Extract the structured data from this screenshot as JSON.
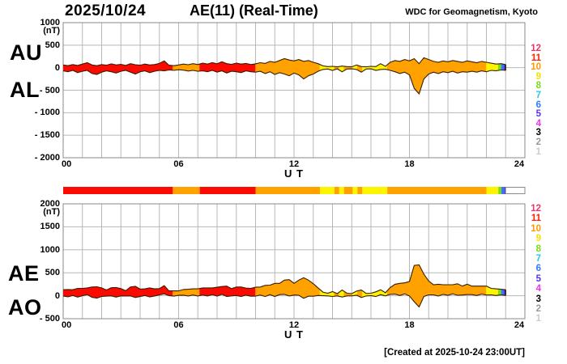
{
  "header": {
    "date": "2025/10/24",
    "title": "AE(11) (Real-Time)",
    "source": "WDC for Geomagnetism, Kyoto"
  },
  "footer": {
    "created": "[Created at 2025-10-24 23:00UT]"
  },
  "axis": {
    "unit": "(nT)",
    "xlabel": "U T",
    "xticks": [
      {
        "v": 0,
        "label": "00"
      },
      {
        "v": 6,
        "label": "06"
      },
      {
        "v": 12,
        "label": "12"
      },
      {
        "v": 18,
        "label": "18"
      },
      {
        "v": 24,
        "label": "24"
      }
    ]
  },
  "panels": {
    "top": {
      "left_labels": [
        "AU",
        "AL"
      ]
    },
    "bottom": {
      "left_labels": [
        "AE",
        "AO"
      ]
    }
  },
  "palette": {
    "red": "#fa0a00",
    "orange": "#ffa200",
    "yellow": "#fdf400",
    "green": "#77dd11",
    "blue": "#3377ff",
    "violet": "#5533ee",
    "outline": "#3a1d00",
    "grid": "#b8b8b8",
    "frame": "#8a8a8a"
  },
  "legend": {
    "levels": [
      {
        "n": 12,
        "color": "#ee3366"
      },
      {
        "n": 11,
        "color": "#ff2200"
      },
      {
        "n": 10,
        "color": "#ff9900"
      },
      {
        "n": 9,
        "color": "#f2e200"
      },
      {
        "n": 8,
        "color": "#77dd11"
      },
      {
        "n": 7,
        "color": "#22ccdd"
      },
      {
        "n": 6,
        "color": "#3377ff"
      },
      {
        "n": 5,
        "color": "#5533ee"
      },
      {
        "n": 4,
        "color": "#ee33ee"
      },
      {
        "n": 3,
        "color": "#000000"
      },
      {
        "n": 2,
        "color": "#999999"
      },
      {
        "n": 1,
        "color": "#cccccc"
      }
    ]
  },
  "chart_data": [
    {
      "type": "area",
      "name": "AU-AL envelope panel",
      "xlabel": "U T",
      "ylabel": "(nT)",
      "xlim": [
        0,
        24
      ],
      "ylim": [
        -2000,
        1000
      ],
      "x_start": 0,
      "x_step": 0.25,
      "x_end": 23,
      "yticks": [
        {
          "v": 1000,
          "label": "1000"
        },
        {
          "v": 500,
          "label": "500"
        },
        {
          "v": 0,
          "label": "0"
        },
        {
          "v": -500,
          "label": "- 500"
        },
        {
          "v": -1000,
          "label": "- 1000"
        },
        {
          "v": -1500,
          "label": "- 1500"
        },
        {
          "v": -2000,
          "label": "- 2000"
        }
      ],
      "series": [
        {
          "name": "AU",
          "values": [
            60,
            45,
            70,
            50,
            80,
            110,
            60,
            45,
            70,
            55,
            85,
            60,
            75,
            50,
            90,
            65,
            55,
            80,
            60,
            70,
            95,
            150,
            55,
            45,
            60,
            80,
            65,
            90,
            70,
            100,
            80,
            110,
            85,
            130,
            90,
            75,
            100,
            80,
            95,
            70,
            85,
            110,
            95,
            140,
            120,
            160,
            200,
            170,
            150,
            180,
            140,
            160,
            120,
            90,
            40,
            25,
            30,
            20,
            35,
            25,
            20,
            60,
            25,
            20,
            30,
            25,
            90,
            30,
            120,
            160,
            140,
            180,
            150,
            200,
            90,
            220,
            180,
            140,
            120,
            150,
            130,
            160,
            140,
            120,
            150,
            130,
            110,
            140,
            120,
            100,
            80,
            90,
            70
          ]
        },
        {
          "name": "AL",
          "values": [
            -70,
            -90,
            -60,
            -110,
            -80,
            -60,
            -130,
            -150,
            -100,
            -70,
            -90,
            -120,
            -80,
            -60,
            -100,
            -140,
            -90,
            -70,
            -110,
            -80,
            -60,
            -70,
            -50,
            -60,
            -45,
            -55,
            -75,
            -60,
            -80,
            -70,
            -90,
            -60,
            -100,
            -70,
            -120,
            -80,
            -90,
            -110,
            -70,
            -90,
            -100,
            -80,
            -130,
            -90,
            -150,
            -110,
            -140,
            -180,
            -120,
            -160,
            -250,
            -180,
            -140,
            -80,
            -40,
            -30,
            -60,
            -25,
            -90,
            -30,
            -25,
            -40,
            -100,
            -30,
            -25,
            -60,
            -40,
            -35,
            -60,
            -90,
            -130,
            -100,
            -160,
            -460,
            -580,
            -250,
            -140,
            -100,
            -130,
            -90,
            -110,
            -80,
            -120,
            -90,
            -100,
            -80,
            -100,
            -70,
            -90,
            -60,
            -70,
            -50,
            -60
          ]
        }
      ]
    },
    {
      "type": "colorbar",
      "name": "activity-level time bar",
      "xlim": [
        0,
        24
      ],
      "empty_start": 23,
      "segments": [
        {
          "start": 0.0,
          "end": 5.7,
          "color": "red",
          "level": 11
        },
        {
          "start": 5.7,
          "end": 7.1,
          "color": "orange",
          "level": 10
        },
        {
          "start": 7.1,
          "end": 10.0,
          "color": "red",
          "level": 11
        },
        {
          "start": 10.0,
          "end": 13.35,
          "color": "orange",
          "level": 10
        },
        {
          "start": 13.35,
          "end": 14.1,
          "color": "yellow",
          "level": 9
        },
        {
          "start": 14.1,
          "end": 14.35,
          "color": "orange",
          "level": 10
        },
        {
          "start": 14.35,
          "end": 14.6,
          "color": "yellow",
          "level": 9
        },
        {
          "start": 14.6,
          "end": 15.05,
          "color": "orange",
          "level": 10
        },
        {
          "start": 15.05,
          "end": 15.3,
          "color": "yellow",
          "level": 9
        },
        {
          "start": 15.3,
          "end": 15.55,
          "color": "orange",
          "level": 10
        },
        {
          "start": 15.55,
          "end": 16.85,
          "color": "yellow",
          "level": 9
        },
        {
          "start": 16.85,
          "end": 22.0,
          "color": "orange",
          "level": 10
        },
        {
          "start": 22.0,
          "end": 22.62,
          "color": "yellow",
          "level": 9
        },
        {
          "start": 22.62,
          "end": 22.78,
          "color": "green",
          "level": 8
        },
        {
          "start": 22.78,
          "end": 22.92,
          "color": "blue",
          "level": 6
        },
        {
          "start": 22.92,
          "end": 23.0,
          "color": "violet",
          "level": 5
        }
      ]
    },
    {
      "type": "area",
      "name": "AE-AO index panel",
      "xlabel": "U T",
      "ylabel": "(nT)",
      "xlim": [
        0,
        24
      ],
      "ylim": [
        -500,
        2000
      ],
      "x_start": 0,
      "x_step": 0.25,
      "x_end": 23,
      "yticks": [
        {
          "v": 2000,
          "label": "2000"
        },
        {
          "v": 1500,
          "label": "1500"
        },
        {
          "v": 1000,
          "label": "1000"
        },
        {
          "v": 500,
          "label": "500"
        },
        {
          "v": 0,
          "label": "0"
        },
        {
          "v": -500,
          "label": "- 500"
        }
      ],
      "series": [
        {
          "name": "AE",
          "values": [
            130,
            135,
            130,
            160,
            160,
            170,
            190,
            195,
            170,
            125,
            175,
            180,
            155,
            110,
            190,
            205,
            145,
            150,
            170,
            150,
            155,
            220,
            105,
            105,
            105,
            135,
            140,
            150,
            150,
            170,
            170,
            170,
            185,
            200,
            210,
            155,
            190,
            190,
            165,
            160,
            185,
            190,
            225,
            230,
            270,
            270,
            340,
            350,
            270,
            340,
            390,
            340,
            260,
            170,
            80,
            55,
            90,
            45,
            125,
            55,
            45,
            100,
            125,
            50,
            55,
            85,
            130,
            65,
            180,
            250,
            270,
            280,
            310,
            660,
            670,
            470,
            320,
            240,
            250,
            240,
            240,
            240,
            260,
            210,
            250,
            210,
            210,
            210,
            210,
            160,
            150,
            140,
            130
          ]
        },
        {
          "name": "AO",
          "values": [
            -5,
            -23,
            5,
            -30,
            0,
            25,
            -35,
            -53,
            -15,
            -8,
            -3,
            -30,
            -3,
            -5,
            -5,
            -38,
            -18,
            5,
            -25,
            -5,
            18,
            40,
            3,
            -8,
            8,
            13,
            -5,
            15,
            -5,
            15,
            -5,
            25,
            -8,
            30,
            -15,
            -3,
            5,
            -15,
            13,
            -10,
            -8,
            15,
            -18,
            25,
            -15,
            25,
            30,
            -5,
            15,
            10,
            -55,
            -10,
            -10,
            5,
            0,
            -3,
            -15,
            -3,
            -28,
            -3,
            -3,
            10,
            -38,
            -5,
            3,
            -18,
            25,
            -3,
            30,
            35,
            5,
            40,
            -5,
            -130,
            -245,
            -15,
            20,
            20,
            -5,
            30,
            10,
            40,
            10,
            15,
            25,
            25,
            5,
            35,
            15,
            20,
            5,
            20,
            5
          ]
        }
      ]
    }
  ]
}
